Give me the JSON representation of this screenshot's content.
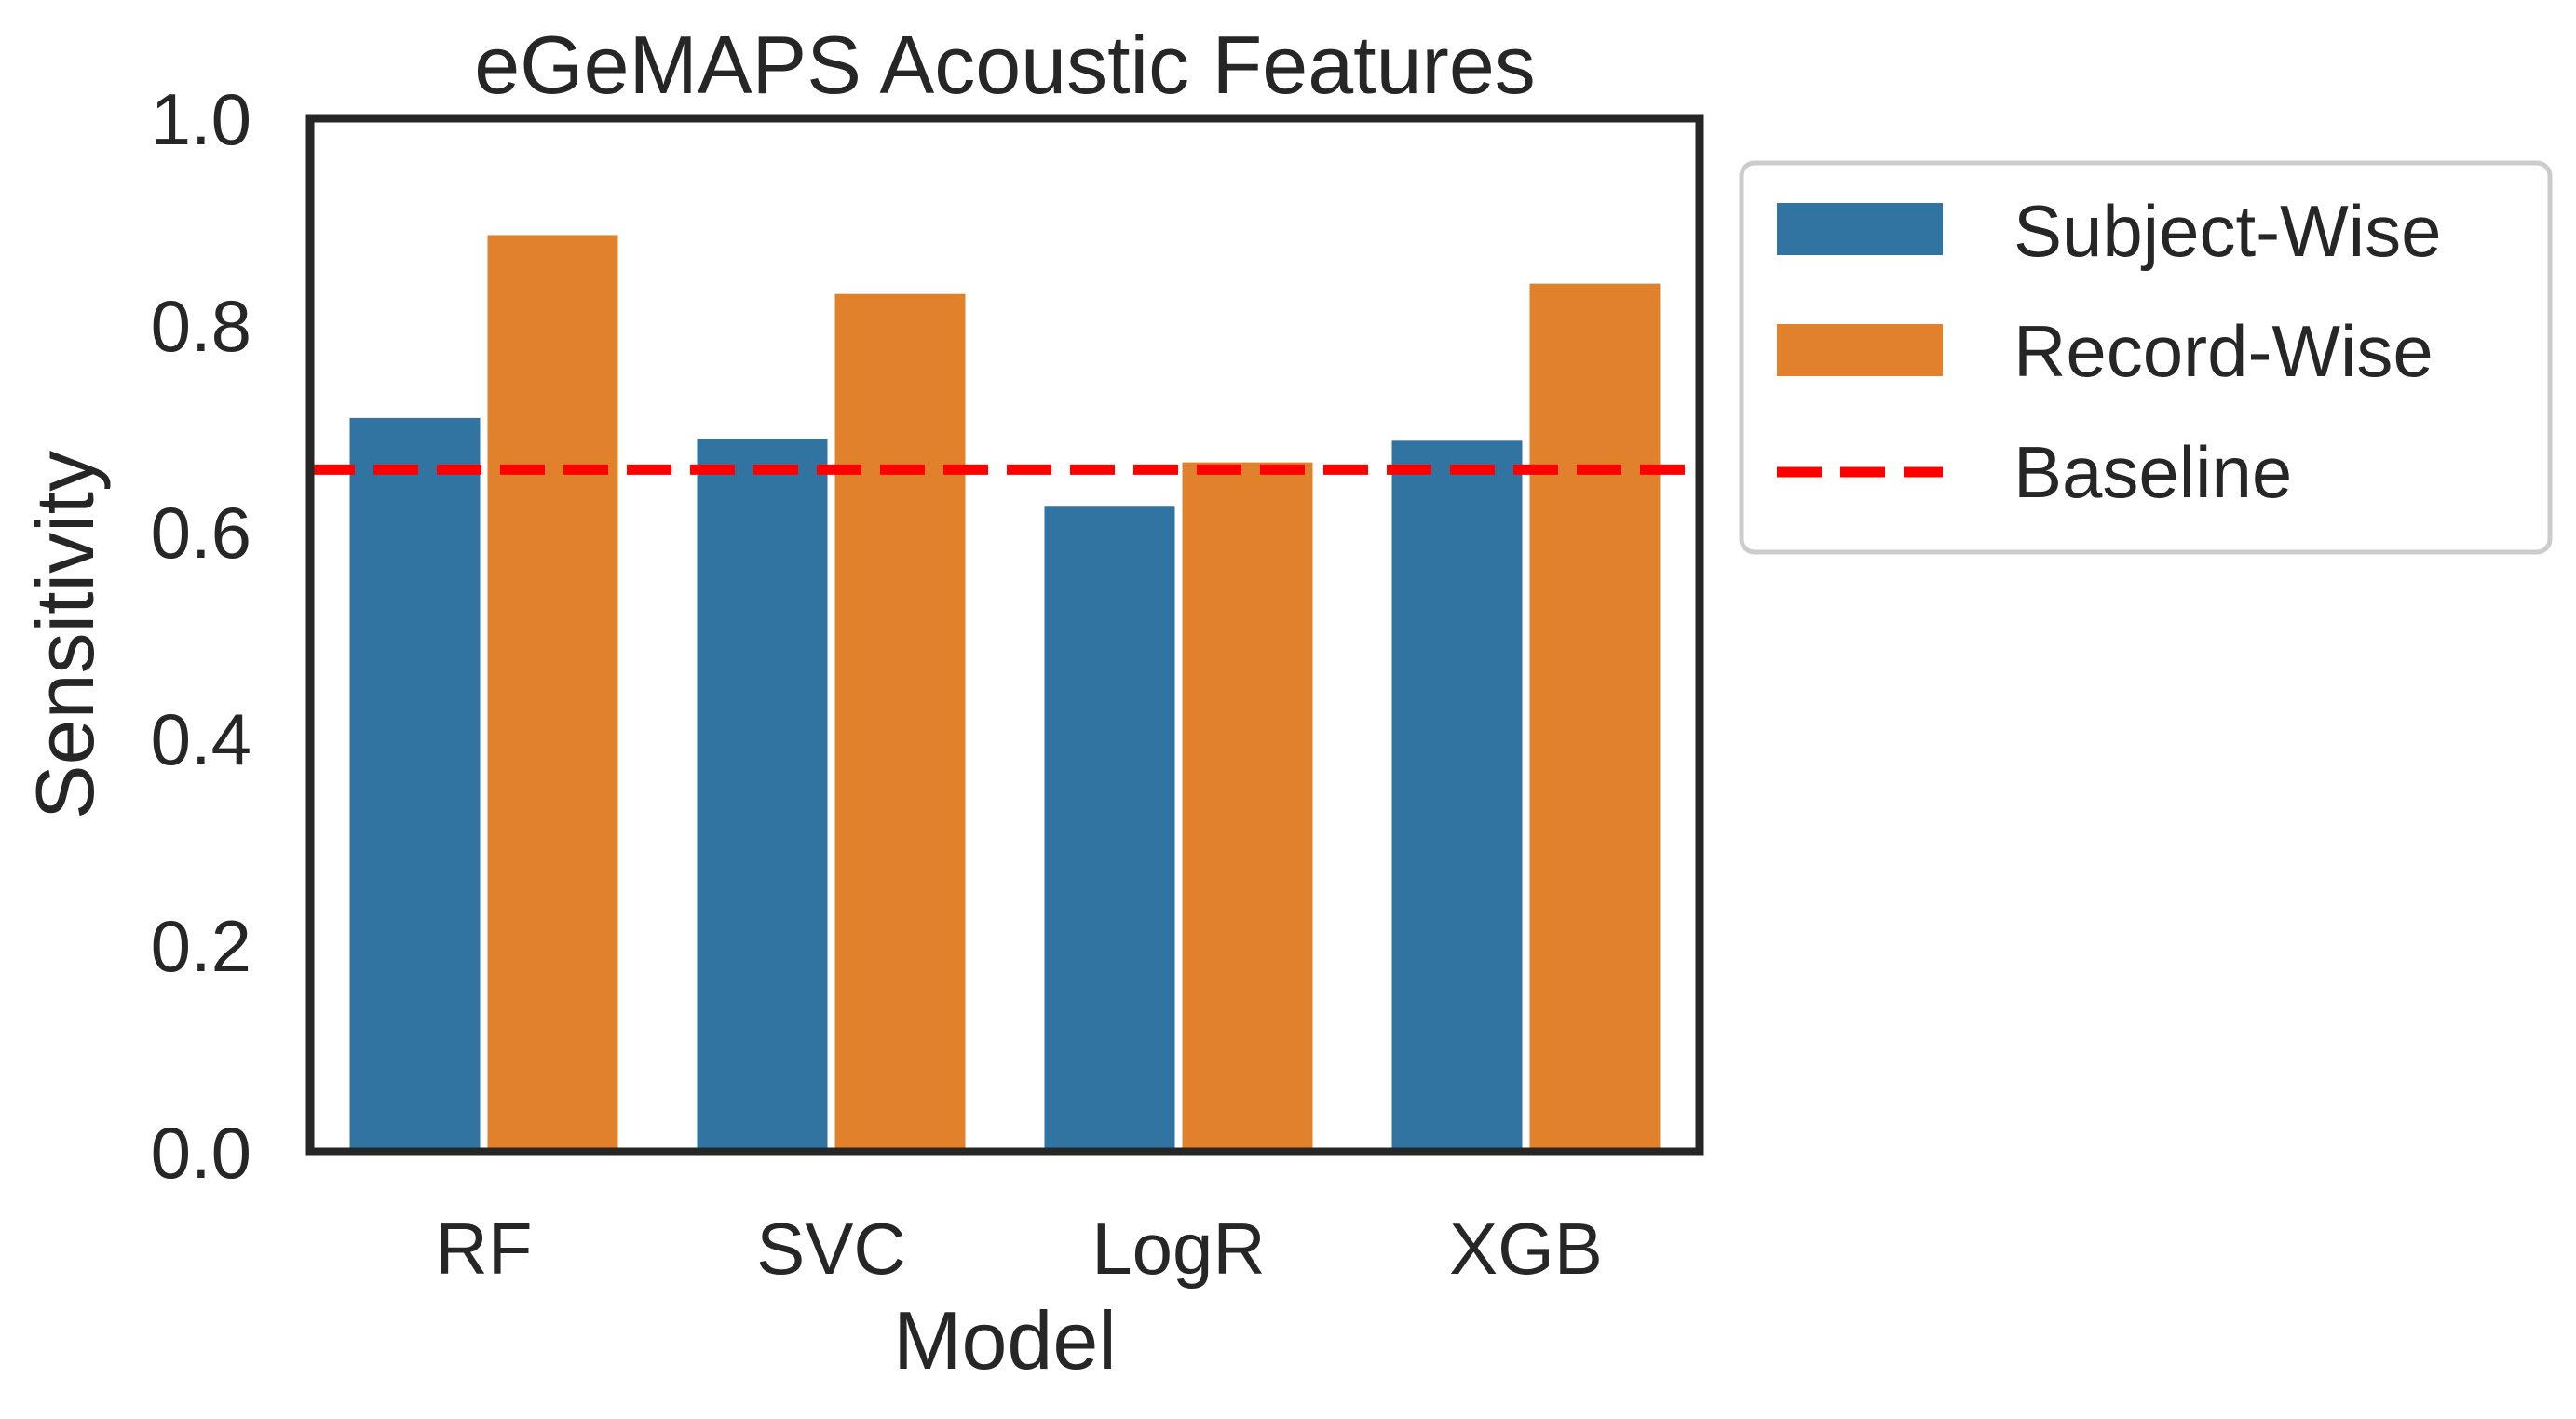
{
  "chart_data": {
    "type": "bar",
    "title": "eGeMAPS Acoustic Features",
    "xlabel": "Model",
    "ylabel": "Sensitivity",
    "categories": [
      "RF",
      "SVC",
      "LogR",
      "XGB"
    ],
    "ylim": [
      0.0,
      1.0
    ],
    "yticks": [
      "0.0",
      "0.2",
      "0.4",
      "0.6",
      "0.8",
      "1.0"
    ],
    "series": [
      {
        "name": "Subject-Wise",
        "color": "#3274a1",
        "values": [
          0.71,
          0.69,
          0.625,
          0.688
        ]
      },
      {
        "name": "Record-Wise",
        "color": "#e1812c",
        "values": [
          0.887,
          0.83,
          0.667,
          0.84
        ]
      }
    ],
    "reference_line": {
      "name": "Baseline",
      "value": 0.66,
      "color": "#ff0000",
      "style": "dashed"
    },
    "grid": false,
    "legend_position": "outside-right"
  }
}
